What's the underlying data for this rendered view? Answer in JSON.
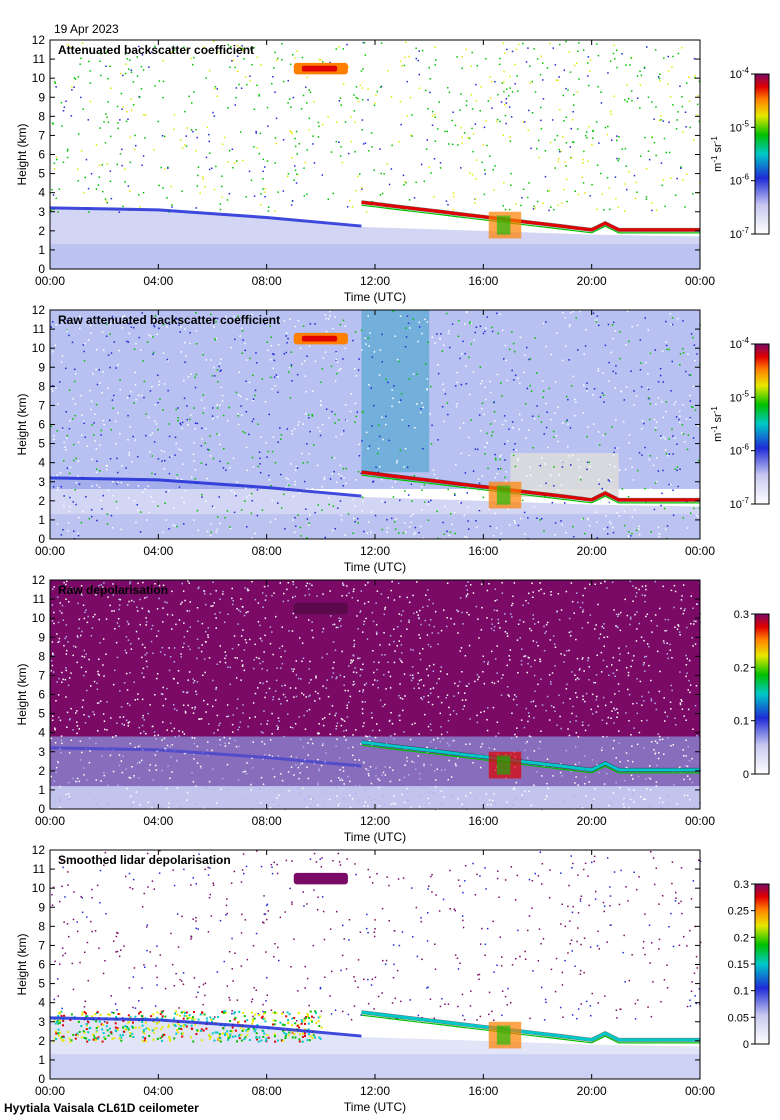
{
  "date_label": "19 Apr 2023",
  "footer_label": "Hyytiala Vaisala CL61D ceilometer",
  "colors": {
    "white": "#ffffff",
    "light_blue": "#c8c8f0",
    "blue": "#1e2bd6",
    "cyan": "#00c8c8",
    "green": "#00c000",
    "yellow": "#e8e800",
    "orange": "#ff8000",
    "red": "#e00000",
    "purple": "#7a0a66",
    "gray": "#dcdcdc"
  },
  "chart_data": [
    {
      "type": "heatmap",
      "title": "Attenuated backscatter coefficient",
      "xlabel": "Time (UTC)",
      "ylabel": "Height (km)",
      "xlim": [
        0,
        24
      ],
      "ylim": [
        0,
        12
      ],
      "x_ticks": [
        "00:00",
        "04:00",
        "08:00",
        "12:00",
        "16:00",
        "20:00",
        "00:00"
      ],
      "y_ticks": [
        "0",
        "1",
        "2",
        "3",
        "4",
        "5",
        "6",
        "7",
        "8",
        "9",
        "10",
        "11",
        "12"
      ],
      "colorbar": {
        "scale": "log",
        "ticks": [
          {
            "base": "10",
            "exp": "-4"
          },
          {
            "base": "10",
            "exp": "-5"
          },
          {
            "base": "10",
            "exp": "-6"
          },
          {
            "base": "10",
            "exp": "-7"
          }
        ],
        "unit_label": {
          "m": "m",
          "m_exp": "-1",
          "sr": "sr",
          "sr_exp": "-1"
        }
      }
    },
    {
      "type": "heatmap",
      "title": "Raw attenuated backscatter coefficient",
      "xlabel": "Time (UTC)",
      "ylabel": "Height (km)",
      "xlim": [
        0,
        24
      ],
      "ylim": [
        0,
        12
      ],
      "x_ticks": [
        "00:00",
        "04:00",
        "08:00",
        "12:00",
        "16:00",
        "20:00",
        "00:00"
      ],
      "y_ticks": [
        "0",
        "1",
        "2",
        "3",
        "4",
        "5",
        "6",
        "7",
        "8",
        "9",
        "10",
        "11",
        "12"
      ],
      "colorbar": {
        "scale": "log",
        "ticks": [
          {
            "base": "10",
            "exp": "-4"
          },
          {
            "base": "10",
            "exp": "-5"
          },
          {
            "base": "10",
            "exp": "-6"
          },
          {
            "base": "10",
            "exp": "-7"
          }
        ],
        "unit_label": {
          "m": "m",
          "m_exp": "-1",
          "sr": "sr",
          "sr_exp": "-1"
        }
      }
    },
    {
      "type": "heatmap",
      "title": "Raw depolarisation",
      "xlabel": "Time (UTC)",
      "ylabel": "Height (km)",
      "xlim": [
        0,
        24
      ],
      "ylim": [
        0,
        12
      ],
      "x_ticks": [
        "00:00",
        "04:00",
        "08:00",
        "12:00",
        "16:00",
        "20:00",
        "00:00"
      ],
      "y_ticks": [
        "0",
        "1",
        "2",
        "3",
        "4",
        "5",
        "6",
        "7",
        "8",
        "9",
        "10",
        "11",
        "12"
      ],
      "colorbar": {
        "scale": "linear",
        "range": [
          0,
          0.3
        ],
        "ticks": [
          "0.3",
          "0.2",
          "0.1",
          "0"
        ]
      }
    },
    {
      "type": "heatmap",
      "title": "Smoothed lidar depolarisation",
      "xlabel": "Time (UTC)",
      "ylabel": "Height (km)",
      "xlim": [
        0,
        24
      ],
      "ylim": [
        0,
        12
      ],
      "x_ticks": [
        "00:00",
        "04:00",
        "08:00",
        "12:00",
        "16:00",
        "20:00",
        "00:00"
      ],
      "y_ticks": [
        "0",
        "1",
        "2",
        "3",
        "4",
        "5",
        "6",
        "7",
        "8",
        "9",
        "10",
        "11",
        "12"
      ],
      "colorbar": {
        "scale": "linear",
        "range": [
          0,
          0.3
        ],
        "ticks": [
          "0.3",
          "0.25",
          "0.2",
          "0.15",
          "0.1",
          "0.05",
          "0"
        ]
      }
    }
  ]
}
